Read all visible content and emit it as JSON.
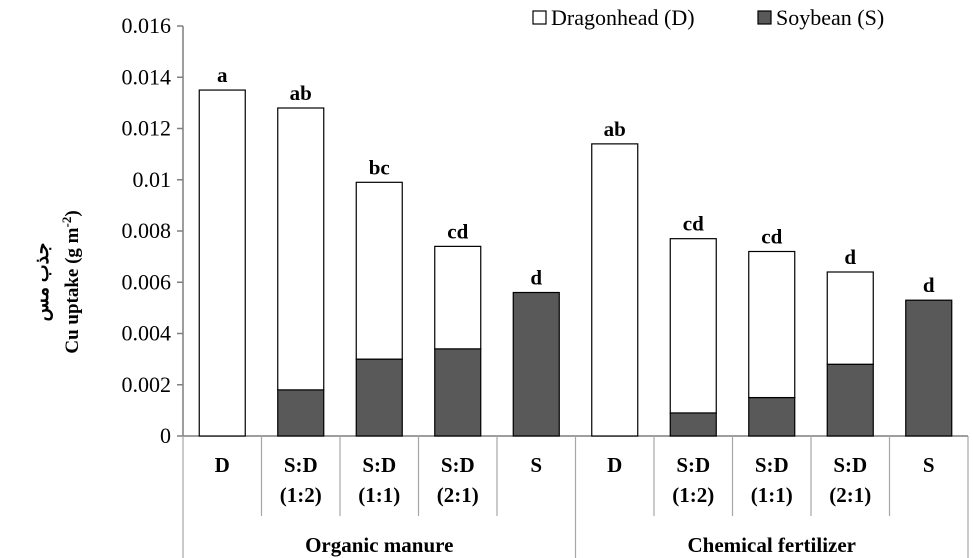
{
  "chart_data": {
    "type": "bar",
    "stacked": true,
    "ylabel_persian": "جذب مس",
    "ylabel": "Cu uptake (g m",
    "ylabel_exp": "-2",
    "ylabel_close": ")",
    "ylim": [
      0,
      0.016
    ],
    "yticks": [
      "0",
      "0.002",
      "0.004",
      "0.006",
      "0.008",
      "0.01",
      "0.012",
      "0.014",
      "0.016"
    ],
    "ytick_values": [
      0,
      0.002,
      0.004,
      0.006,
      0.008,
      0.01,
      0.012,
      0.014,
      0.016
    ],
    "groups": [
      {
        "name": "Organic manure",
        "categories": [
          [
            "D"
          ],
          [
            "S:D",
            "(1:2)"
          ],
          [
            "S:D",
            "(1:1)"
          ],
          [
            "S:D",
            "(2:1)"
          ],
          [
            "S"
          ]
        ]
      },
      {
        "name": "Chemical fertilizer",
        "categories": [
          [
            "D"
          ],
          [
            "S:D",
            "(1:2)"
          ],
          [
            "S:D",
            "(1:1)"
          ],
          [
            "S:D",
            "(2:1)"
          ],
          [
            "S"
          ]
        ]
      }
    ],
    "series": [
      {
        "name": "Soybean (S)",
        "color": "#595959",
        "values": [
          0,
          0.0018,
          0.003,
          0.0034,
          0.0056,
          0,
          0.0009,
          0.0015,
          0.0028,
          0.0053
        ]
      },
      {
        "name": "Dragonhead (D)",
        "color": "#ffffff",
        "values": [
          0.0135,
          0.011,
          0.0069,
          0.004,
          0,
          0.0114,
          0.0068,
          0.0057,
          0.0036,
          0
        ]
      }
    ],
    "significance_letters": [
      "a",
      "ab",
      "bc",
      "cd",
      "d",
      "ab",
      "cd",
      "cd",
      "d",
      "d"
    ],
    "legend": {
      "placement": "top-right",
      "entries": [
        {
          "label": "Dragonhead (D)",
          "color": "#ffffff"
        },
        {
          "label": "Soybean (S)",
          "color": "#595959"
        }
      ]
    },
    "grid": false
  }
}
